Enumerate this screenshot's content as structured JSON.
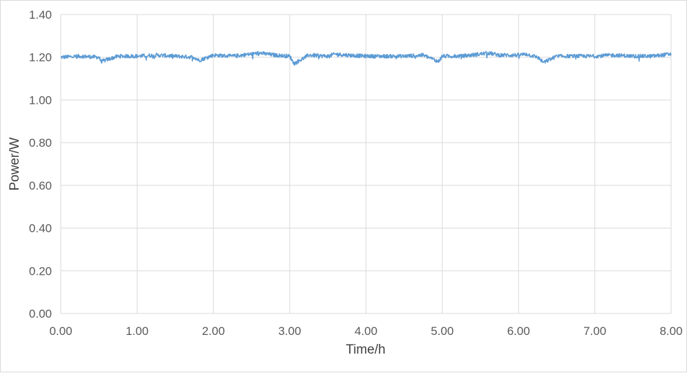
{
  "chart_data": {
    "type": "line",
    "title": "",
    "xlabel": "Time/h",
    "ylabel": "Power/W",
    "xlim": [
      0,
      8
    ],
    "ylim": [
      0,
      1.4
    ],
    "x_ticks": [
      "0.00",
      "1.00",
      "2.00",
      "3.00",
      "4.00",
      "5.00",
      "6.00",
      "7.00",
      "8.00"
    ],
    "y_ticks": [
      "0.00",
      "0.20",
      "0.40",
      "0.60",
      "0.80",
      "1.00",
      "1.20",
      "1.40"
    ],
    "grid": true,
    "legend": "none",
    "color": "#5b9bd5",
    "series": [
      {
        "x": [
          0.0,
          0.25,
          0.5,
          0.53,
          0.75,
          1.0,
          1.25,
          1.5,
          1.75,
          1.81,
          2.0,
          2.25,
          2.5,
          2.6,
          2.8,
          3.0,
          3.06,
          3.25,
          3.5,
          3.6,
          3.75,
          4.0,
          4.25,
          4.5,
          4.75,
          4.95,
          5.0,
          5.25,
          5.5,
          5.6,
          5.75,
          6.0,
          6.1,
          6.25,
          6.33,
          6.5,
          6.75,
          7.0,
          7.25,
          7.5,
          7.75,
          8.0
        ],
        "y": [
          1.2,
          1.205,
          1.2,
          1.18,
          1.205,
          1.205,
          1.21,
          1.205,
          1.2,
          1.185,
          1.21,
          1.205,
          1.215,
          1.22,
          1.21,
          1.205,
          1.17,
          1.21,
          1.205,
          1.215,
          1.21,
          1.205,
          1.205,
          1.205,
          1.21,
          1.18,
          1.205,
          1.205,
          1.215,
          1.22,
          1.21,
          1.21,
          1.215,
          1.2,
          1.175,
          1.205,
          1.205,
          1.205,
          1.21,
          1.205,
          1.205,
          1.215
        ]
      }
    ]
  }
}
